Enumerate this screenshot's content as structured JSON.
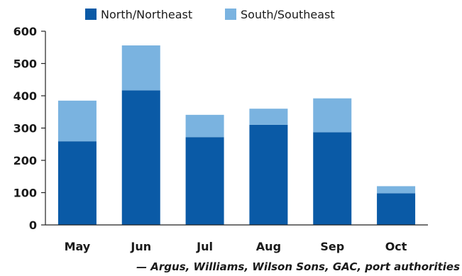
{
  "chart_data": {
    "type": "bar",
    "stacked": true,
    "categories": [
      "May",
      "Jun",
      "Jul",
      "Aug",
      "Sep",
      "Oct"
    ],
    "series": [
      {
        "name": "North/Northeast",
        "color": "#0a5aa6",
        "values": [
          259,
          417,
          272,
          310,
          287,
          98
        ]
      },
      {
        "name": "South/Southeast",
        "color": "#7ab3e0",
        "values": [
          126,
          139,
          69,
          50,
          105,
          22
        ]
      }
    ],
    "ylim": [
      0,
      600
    ],
    "yticks": [
      0,
      100,
      200,
      300,
      400,
      500,
      600
    ],
    "legend_position": "top",
    "grid": false
  },
  "source": "— Argus, Williams, Wilson Sons, GAC, port authorities"
}
